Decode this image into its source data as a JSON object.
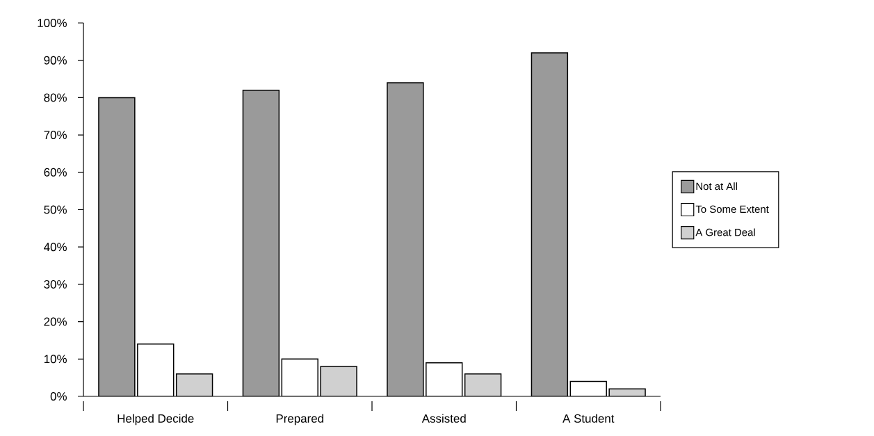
{
  "chart_data": {
    "type": "bar",
    "categories": [
      "Helped Decide",
      "Prepared",
      "Assisted",
      "A  Student"
    ],
    "series": [
      {
        "name": "Not at All",
        "color": "#9a9a9a",
        "values": [
          80,
          82,
          84,
          92
        ]
      },
      {
        "name": "To Some Extent",
        "color": "#ffffff",
        "values": [
          14,
          10,
          9,
          4
        ]
      },
      {
        "name": "A Great Deal",
        "color": "#d0d0d0",
        "values": [
          6,
          8,
          6,
          2
        ]
      }
    ],
    "ylim": [
      0,
      100
    ],
    "yticks": [
      {
        "value": 0,
        "label": "0%"
      },
      {
        "value": 10,
        "label": "10%"
      },
      {
        "value": 20,
        "label": "20%"
      },
      {
        "value": 30,
        "label": "30%"
      },
      {
        "value": 40,
        "label": "40%"
      },
      {
        "value": 50,
        "label": "50%"
      },
      {
        "value": 60,
        "label": "60%"
      },
      {
        "value": 70,
        "label": "70%"
      },
      {
        "value": 80,
        "label": "80%"
      },
      {
        "value": 90,
        "label": "90%"
      },
      {
        "value": 100,
        "label": "100%"
      }
    ],
    "grid": false,
    "legend": "right"
  }
}
